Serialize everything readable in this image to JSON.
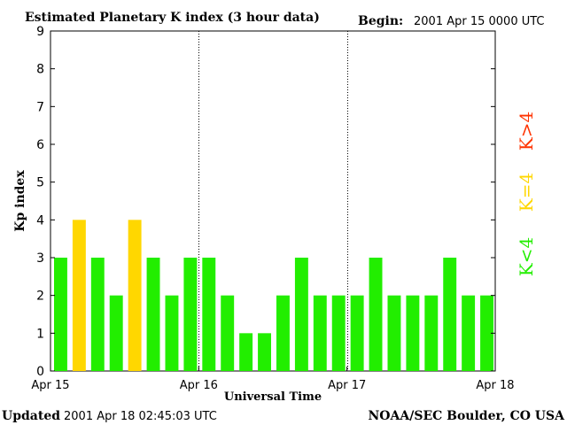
{
  "header": {
    "title": "Estimated Planetary K index (3 hour data)",
    "begin_label": "Begin:",
    "begin_value": "2001 Apr 15 0000 UTC"
  },
  "footer": {
    "updated_label": "Updated",
    "updated_value": "2001 Apr 18 02:45:03 UTC",
    "source": "NOAA/SEC Boulder, CO USA"
  },
  "legend": {
    "items": [
      {
        "label": "K>4",
        "color": "#ff3300"
      },
      {
        "label": "K=4",
        "color": "#ffd700"
      },
      {
        "label": "K<4",
        "color": "#22ee00"
      }
    ]
  },
  "chart_data": {
    "type": "bar",
    "ylabel": "Kp index",
    "xlabel": "Universal Time",
    "ylim": [
      0,
      9
    ],
    "yticks": [
      0,
      1,
      2,
      3,
      4,
      5,
      6,
      7,
      8,
      9
    ],
    "xticks": [
      "Apr 15",
      "Apr 16",
      "Apr 17",
      "Apr 18"
    ],
    "bins_per_day": 8,
    "values": [
      3,
      4,
      3,
      2,
      4,
      3,
      2,
      3,
      3,
      2,
      1,
      1,
      2,
      3,
      2,
      2,
      2,
      3,
      2,
      2,
      2,
      3,
      2,
      2
    ],
    "day_dividers": "dotted",
    "colors": {
      "below4": "#22ee00",
      "equal4": "#ffd700",
      "above4": "#ff3300"
    }
  }
}
